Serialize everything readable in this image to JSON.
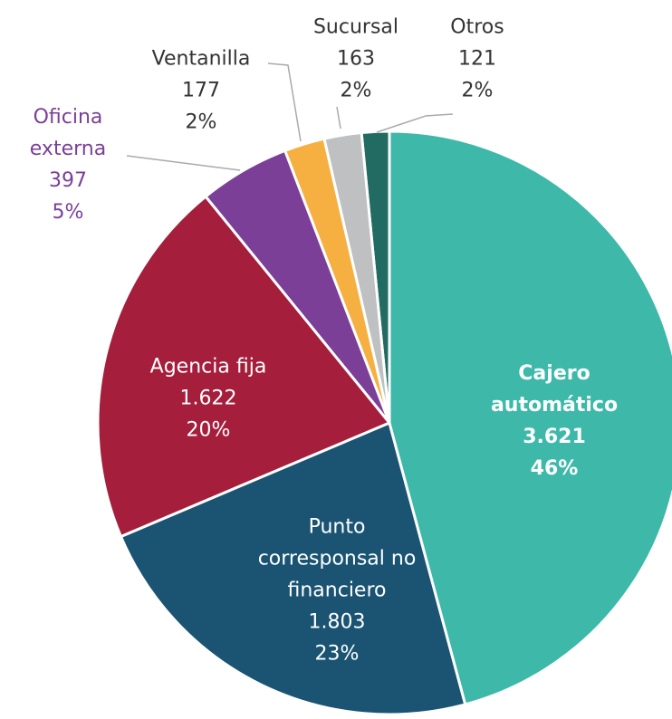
{
  "chart_data": {
    "type": "pie",
    "categories": [
      "Cajero automático",
      "Punto corresponsal no financiero",
      "Agencia fija",
      "Oficina externa",
      "Ventanilla",
      "Sucursal",
      "Otros"
    ],
    "values": [
      3621,
      1803,
      1622,
      397,
      177,
      163,
      121
    ],
    "value_labels": [
      "3.621",
      "1.803",
      "1.622",
      "397",
      "177",
      "163",
      "121"
    ],
    "percent_labels": [
      "46%",
      "23%",
      "20%",
      "5%",
      "2%",
      "2%",
      "2%"
    ],
    "colors": [
      "#3db8a9",
      "#1a5472",
      "#a51e3c",
      "#7b3f98",
      "#f5b041",
      "#bfc0c2",
      "#226b62"
    ]
  }
}
